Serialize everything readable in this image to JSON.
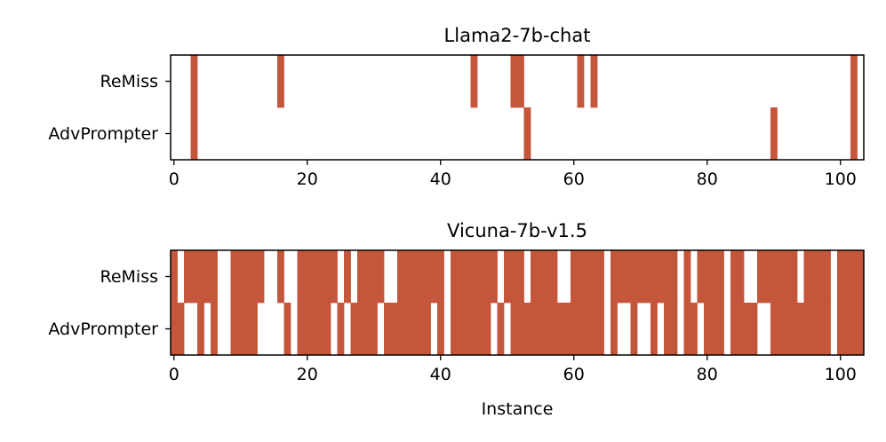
{
  "colors": {
    "mark": "#c4573b",
    "axis": "#000000",
    "background": "#ffffff"
  },
  "chart_data": [
    {
      "type": "heatmap",
      "title": "Llama2-7b-chat",
      "xlabel": "",
      "xlim": [
        -0.5,
        103.5
      ],
      "xticks": [
        "0",
        "20",
        "40",
        "60",
        "80",
        "100"
      ],
      "rows": [
        "ReMiss",
        "AdvPrompter"
      ],
      "active": {
        "ReMiss": [
          3,
          16,
          45,
          51,
          52,
          61,
          63,
          102
        ],
        "AdvPrompter": [
          3,
          53,
          90,
          102
        ]
      }
    },
    {
      "type": "heatmap",
      "title": "Vicuna-7b-v1.5",
      "xlabel": "Instance",
      "xlim": [
        -0.5,
        103.5
      ],
      "xticks": [
        "0",
        "20",
        "40",
        "60",
        "80",
        "100"
      ],
      "rows": [
        "ReMiss",
        "AdvPrompter"
      ],
      "active": {
        "ReMiss": [
          0,
          2,
          3,
          4,
          5,
          6,
          9,
          10,
          11,
          12,
          13,
          16,
          19,
          20,
          21,
          22,
          23,
          24,
          26,
          28,
          29,
          30,
          31,
          34,
          35,
          36,
          37,
          38,
          39,
          40,
          42,
          43,
          44,
          45,
          46,
          47,
          48,
          50,
          51,
          52,
          54,
          55,
          56,
          57,
          60,
          61,
          62,
          63,
          64,
          66,
          67,
          68,
          69,
          70,
          71,
          72,
          73,
          74,
          75,
          77,
          79,
          80,
          81,
          82,
          84,
          85,
          88,
          89,
          90,
          91,
          92,
          93,
          95,
          96,
          97,
          98,
          100,
          101,
          102,
          103
        ],
        "AdvPrompter": [
          0,
          1,
          4,
          6,
          9,
          10,
          11,
          12,
          17,
          19,
          20,
          21,
          22,
          23,
          25,
          27,
          28,
          29,
          30,
          32,
          33,
          34,
          35,
          36,
          37,
          38,
          40,
          42,
          43,
          44,
          45,
          46,
          47,
          49,
          51,
          52,
          53,
          54,
          55,
          56,
          57,
          58,
          59,
          60,
          61,
          62,
          63,
          64,
          66,
          69,
          72,
          74,
          75,
          77,
          78,
          80,
          81,
          82,
          84,
          85,
          86,
          87,
          90,
          91,
          92,
          93,
          94,
          95,
          96,
          97,
          98,
          100,
          101,
          102,
          103
        ]
      }
    }
  ]
}
